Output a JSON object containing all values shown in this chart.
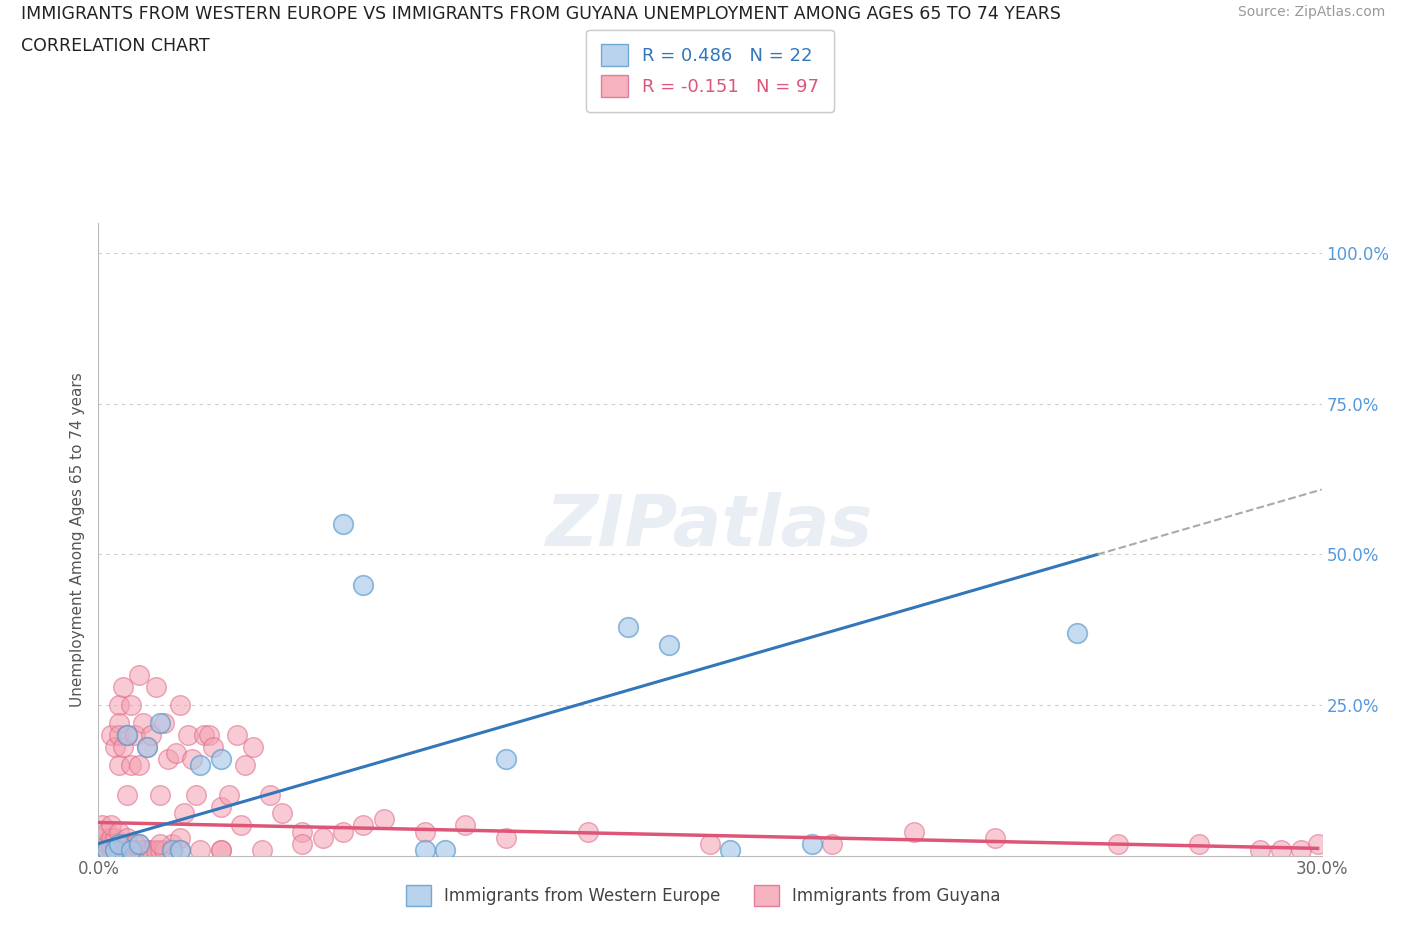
{
  "title_line1": "IMMIGRANTS FROM WESTERN EUROPE VS IMMIGRANTS FROM GUYANA UNEMPLOYMENT AMONG AGES 65 TO 74 YEARS",
  "title_line2": "CORRELATION CHART",
  "source": "Source: ZipAtlas.com",
  "ylabel": "Unemployment Among Ages 65 to 74 years",
  "xlim": [
    0.0,
    0.3
  ],
  "ylim": [
    0.0,
    1.05
  ],
  "xticks": [
    0.0,
    0.05,
    0.1,
    0.15,
    0.2,
    0.25,
    0.3
  ],
  "xticklabels": [
    "0.0%",
    "",
    "",
    "",
    "",
    "",
    "30.0%"
  ],
  "ytick_positions": [
    0.0,
    0.25,
    0.5,
    0.75,
    1.0
  ],
  "ytick_labels": [
    "",
    "25.0%",
    "50.0%",
    "75.0%",
    "100.0%"
  ],
  "blue_color": "#a8c8e8",
  "blue_edge": "#5599cc",
  "blue_line_color": "#3377bb",
  "pink_color": "#f4a0b0",
  "pink_edge": "#dd6688",
  "pink_line_color": "#dd5577",
  "gray_dash_color": "#aaaaaa",
  "blue_R": 0.486,
  "blue_N": 22,
  "pink_R": -0.151,
  "pink_N": 97,
  "watermark": "ZIPatlas",
  "legend_label_blue": "Immigrants from Western Europe",
  "legend_label_pink": "Immigrants from Guyana",
  "blue_scatter_x": [
    0.002,
    0.004,
    0.005,
    0.007,
    0.008,
    0.01,
    0.012,
    0.015,
    0.018,
    0.02,
    0.025,
    0.03,
    0.06,
    0.065,
    0.08,
    0.085,
    0.1,
    0.13,
    0.14,
    0.155,
    0.175,
    0.24
  ],
  "blue_scatter_y": [
    0.01,
    0.01,
    0.02,
    0.2,
    0.01,
    0.02,
    0.18,
    0.22,
    0.01,
    0.01,
    0.15,
    0.16,
    0.55,
    0.45,
    0.01,
    0.01,
    0.16,
    0.38,
    0.35,
    0.01,
    0.02,
    0.37
  ],
  "pink_scatter_x": [
    0.001,
    0.001,
    0.001,
    0.002,
    0.002,
    0.002,
    0.003,
    0.003,
    0.003,
    0.003,
    0.004,
    0.004,
    0.004,
    0.005,
    0.005,
    0.005,
    0.005,
    0.005,
    0.006,
    0.006,
    0.006,
    0.006,
    0.007,
    0.007,
    0.007,
    0.007,
    0.008,
    0.008,
    0.008,
    0.009,
    0.009,
    0.01,
    0.01,
    0.01,
    0.01,
    0.011,
    0.011,
    0.012,
    0.012,
    0.013,
    0.013,
    0.014,
    0.014,
    0.015,
    0.015,
    0.016,
    0.016,
    0.017,
    0.018,
    0.019,
    0.02,
    0.02,
    0.021,
    0.022,
    0.023,
    0.024,
    0.025,
    0.026,
    0.027,
    0.028,
    0.03,
    0.03,
    0.032,
    0.034,
    0.035,
    0.036,
    0.038,
    0.04,
    0.042,
    0.045,
    0.05,
    0.055,
    0.06,
    0.065,
    0.07,
    0.08,
    0.09,
    0.1,
    0.12,
    0.15,
    0.18,
    0.2,
    0.22,
    0.25,
    0.27,
    0.285,
    0.29,
    0.295,
    0.299,
    0.003,
    0.005,
    0.007,
    0.009,
    0.015,
    0.02,
    0.03,
    0.05
  ],
  "pink_scatter_y": [
    0.01,
    0.03,
    0.05,
    0.01,
    0.02,
    0.04,
    0.01,
    0.02,
    0.03,
    0.2,
    0.01,
    0.03,
    0.18,
    0.01,
    0.25,
    0.22,
    0.15,
    0.2,
    0.01,
    0.02,
    0.18,
    0.28,
    0.01,
    0.02,
    0.1,
    0.2,
    0.01,
    0.15,
    0.25,
    0.01,
    0.2,
    0.01,
    0.02,
    0.15,
    0.3,
    0.01,
    0.22,
    0.01,
    0.18,
    0.01,
    0.2,
    0.01,
    0.28,
    0.01,
    0.1,
    0.01,
    0.22,
    0.16,
    0.02,
    0.17,
    0.01,
    0.25,
    0.07,
    0.2,
    0.16,
    0.1,
    0.01,
    0.2,
    0.2,
    0.18,
    0.01,
    0.08,
    0.1,
    0.2,
    0.05,
    0.15,
    0.18,
    0.01,
    0.1,
    0.07,
    0.04,
    0.03,
    0.04,
    0.05,
    0.06,
    0.04,
    0.05,
    0.03,
    0.04,
    0.02,
    0.02,
    0.04,
    0.03,
    0.02,
    0.02,
    0.01,
    0.01,
    0.01,
    0.02,
    0.05,
    0.04,
    0.03,
    0.02,
    0.02,
    0.03,
    0.01,
    0.02
  ],
  "blue_line_x0": 0.0,
  "blue_line_y0": 0.02,
  "blue_line_x1": 0.245,
  "blue_line_y1": 0.5,
  "pink_line_x0": 0.0,
  "pink_line_y0": 0.055,
  "pink_line_x1": 0.299,
  "pink_line_y1": 0.012
}
